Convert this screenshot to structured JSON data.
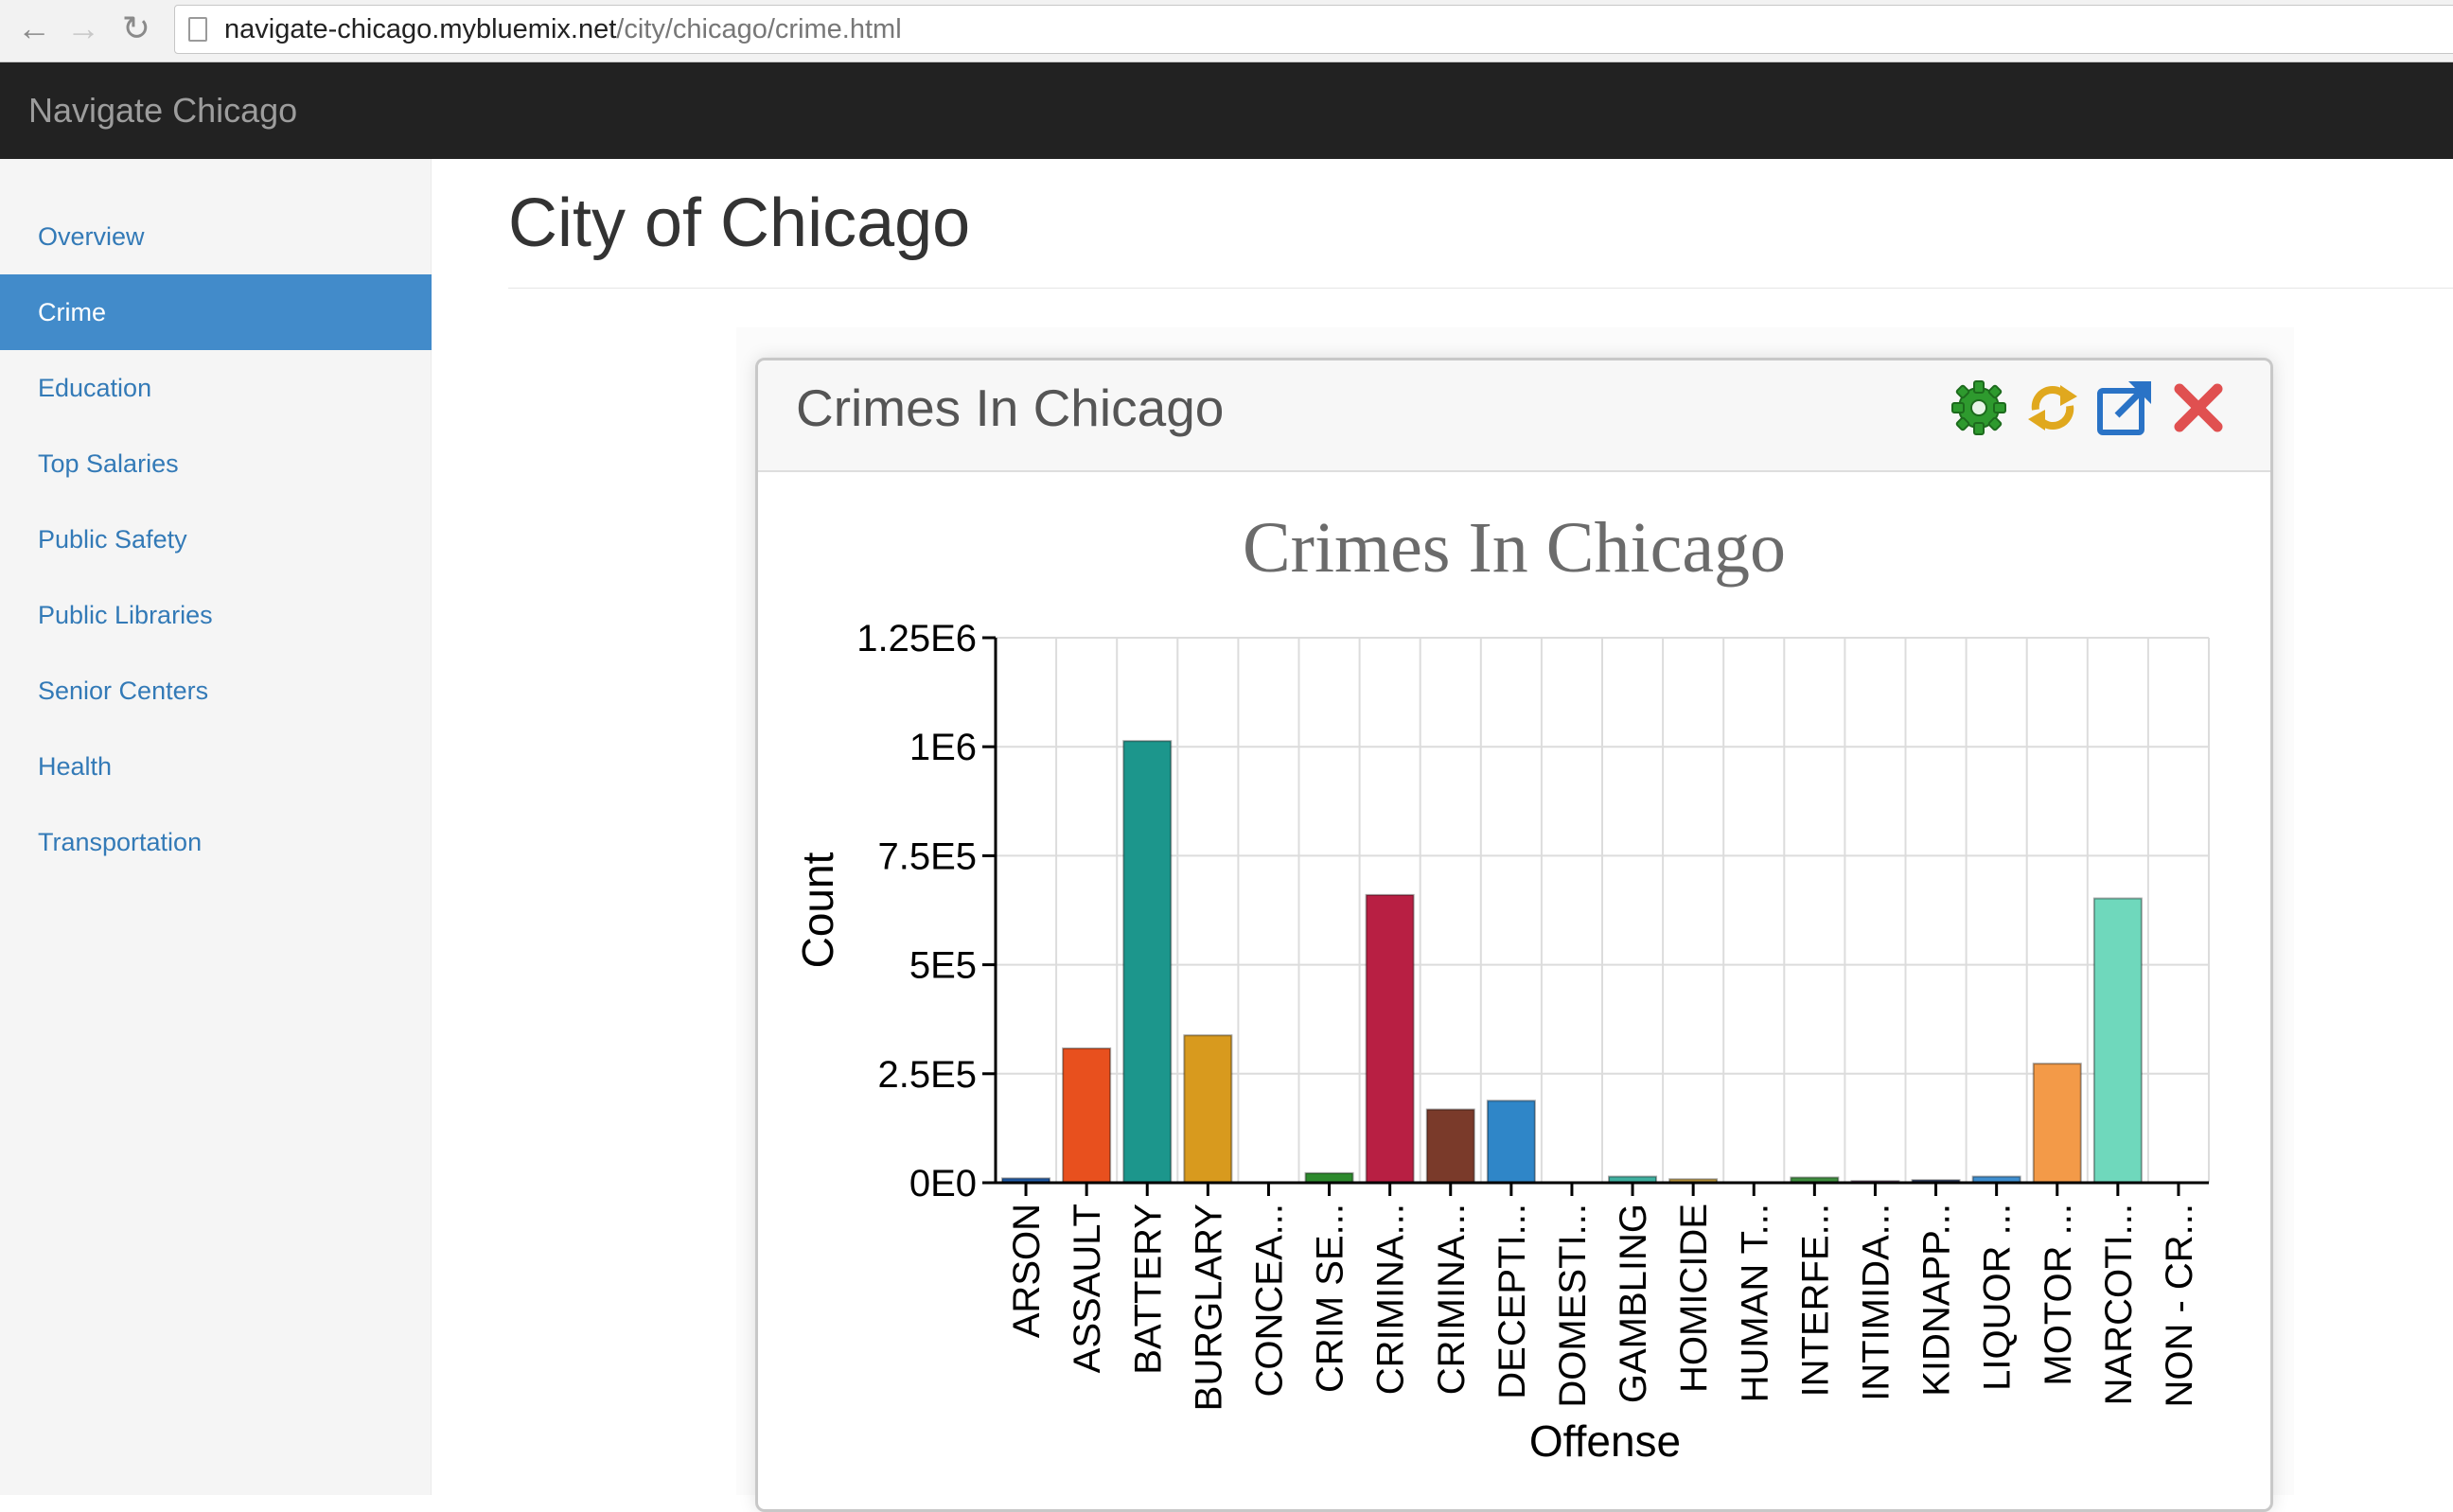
{
  "browser": {
    "back_icon": "arrow-left-icon",
    "forward_icon": "arrow-right-icon",
    "reload_icon": "reload-icon",
    "url_host": "navigate-chicago.mybluemix.net",
    "url_path": "/city/chicago/crime.html"
  },
  "navbar": {
    "brand": "Navigate Chicago"
  },
  "sidebar": {
    "items": [
      {
        "label": "Overview"
      },
      {
        "label": "Crime",
        "active": true
      },
      {
        "label": "Education"
      },
      {
        "label": "Top Salaries"
      },
      {
        "label": "Public Safety"
      },
      {
        "label": "Public Libraries"
      },
      {
        "label": "Senior Centers"
      },
      {
        "label": "Health"
      },
      {
        "label": "Transportation"
      }
    ]
  },
  "main": {
    "title": "City of Chicago"
  },
  "widget": {
    "title": "Crimes In Chicago",
    "tools": [
      "gear-icon",
      "refresh-icon",
      "popout-icon",
      "close-icon"
    ]
  },
  "chart_data": {
    "type": "bar",
    "title": "Crimes In Chicago",
    "xlabel": "Offense",
    "ylabel": "Count",
    "ylim": [
      0,
      1250000
    ],
    "yticks": [
      0,
      250000,
      500000,
      750000,
      1000000,
      1250000
    ],
    "ytick_labels": [
      "0E0",
      "2.5E5",
      "5E5",
      "7.5E5",
      "1E6",
      "1.25E6"
    ],
    "grid": true,
    "categories": [
      "ARSON",
      "ASSAULT",
      "BATTERY",
      "BURGLARY",
      "CONCEA...",
      "CRIM SE...",
      "CRIMINA...",
      "CRIMINA...",
      "DECEPTI...",
      "DOMESTI...",
      "GAMBLING",
      "HOMICIDE",
      "HUMAN T...",
      "INTERFE...",
      "INTIMIDA...",
      "KIDNAPP...",
      "LIQUOR ...",
      "MOTOR ...",
      "NARCOTI...",
      "NON - CR..."
    ],
    "values": [
      10000,
      308000,
      1013000,
      338000,
      0,
      22000,
      660000,
      168000,
      188000,
      0,
      14000,
      8000,
      0,
      12000,
      4000,
      6000,
      14000,
      273000,
      652000,
      0
    ],
    "colors": [
      "#1f5aa6",
      "#e8501e",
      "#1c968c",
      "#d89a1e",
      "#888888",
      "#2e8a2e",
      "#b81f43",
      "#7a3a2a",
      "#2f86c8",
      "#7a7a7a",
      "#3fb0a0",
      "#c8a040",
      "#888888",
      "#3e8e3e",
      "#9a4f9a",
      "#2a3f6a",
      "#3f8fd0",
      "#f39a48",
      "#6fd8bc",
      "#888888"
    ]
  }
}
